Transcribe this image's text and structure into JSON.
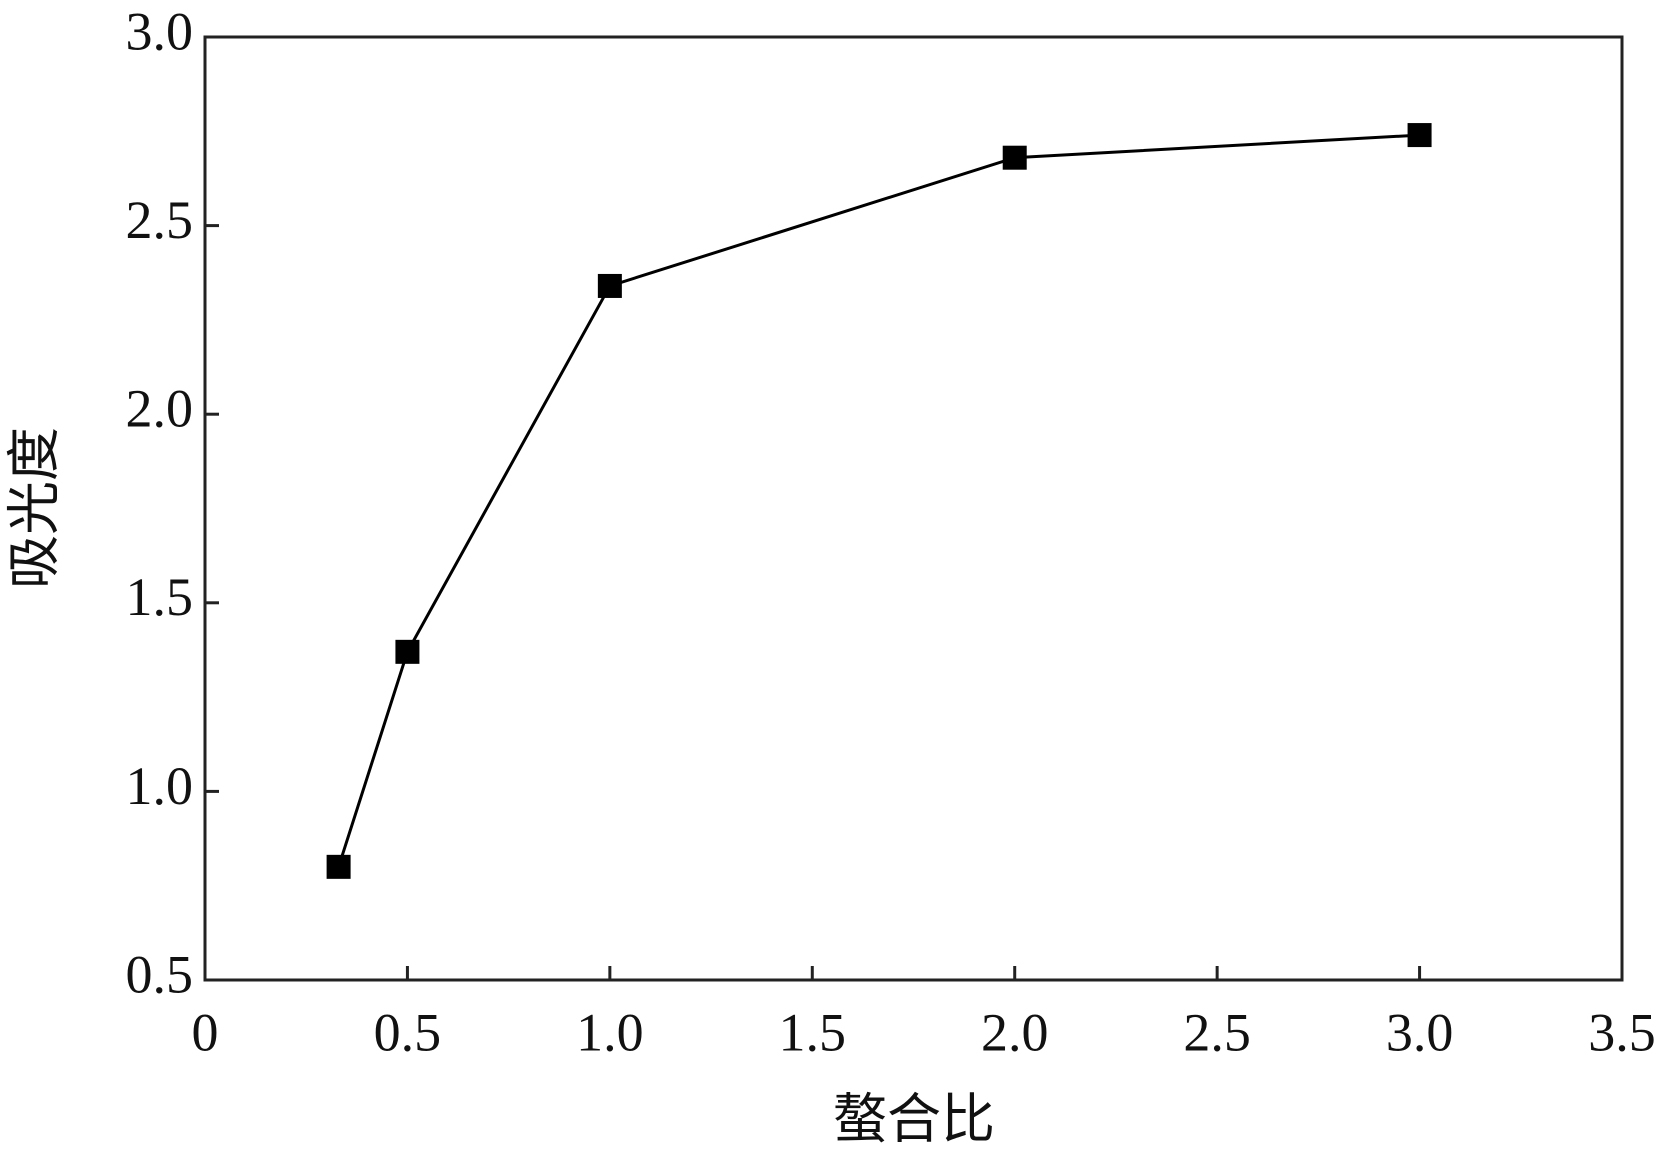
{
  "chart_data": {
    "type": "line",
    "x_label": "螯合比",
    "y_label": "吸光度",
    "x": [
      0.33,
      0.5,
      1.0,
      2.0,
      3.0
    ],
    "series": [
      {
        "color": "#000000",
        "values": [
          0.8,
          1.37,
          2.34,
          2.68,
          2.74
        ]
      }
    ],
    "xlim": [
      0,
      3.5
    ],
    "ylim": [
      0.5,
      3.0
    ],
    "xticks": [
      0,
      0.5,
      {
        "value": 1,
        "label": "1.0"
      },
      1.5,
      {
        "value": 2,
        "label": "2.0"
      },
      2.5,
      {
        "value": 3,
        "label": "3.0"
      },
      3.5
    ],
    "yticks": [
      0.5,
      {
        "value": 1,
        "label": "1.0"
      },
      1.5,
      {
        "value": 2,
        "label": "2.0"
      },
      2.5,
      {
        "value": 3,
        "label": "3.0"
      }
    ],
    "marker": "square",
    "grid": false
  }
}
